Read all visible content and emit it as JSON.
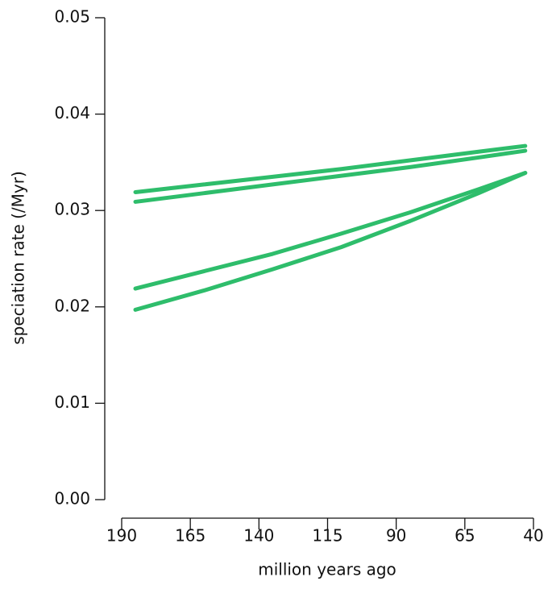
{
  "chart_data": {
    "type": "line",
    "xlabel": "million years ago",
    "ylabel": "speciation rate (/Myr)",
    "x": [
      185,
      160,
      135,
      110,
      85,
      60,
      43
    ],
    "series": [
      {
        "color": "#2ebd6b",
        "values": [
          0.0319,
          0.0327,
          0.0335,
          0.0343,
          0.0352,
          0.0361,
          0.0367
        ]
      },
      {
        "color": "#2ebd6b",
        "values": [
          0.0309,
          0.0318,
          0.0327,
          0.0336,
          0.0345,
          0.0355,
          0.0362
        ]
      },
      {
        "color": "#2ebd6b",
        "values": [
          0.0219,
          0.0237,
          0.0255,
          0.0276,
          0.0298,
          0.0322,
          0.0339
        ]
      },
      {
        "color": "#2ebd6b",
        "values": [
          0.0197,
          0.0217,
          0.0239,
          0.0262,
          0.0289,
          0.0318,
          0.0339
        ]
      }
    ],
    "xlim": [
      190,
      40
    ],
    "xticks": [
      190,
      165,
      140,
      115,
      90,
      65,
      40
    ],
    "ylim": [
      0,
      0.05
    ],
    "yticks": [
      {
        "value": 0,
        "label": "0.00"
      },
      {
        "value": 0.01,
        "label": "0.01"
      },
      {
        "value": 0.02,
        "label": "0.02"
      },
      {
        "value": 0.03,
        "label": "0.03"
      },
      {
        "value": 0.04,
        "label": "0.04"
      },
      {
        "value": 0.05,
        "label": "0.05"
      }
    ],
    "grid": false
  }
}
